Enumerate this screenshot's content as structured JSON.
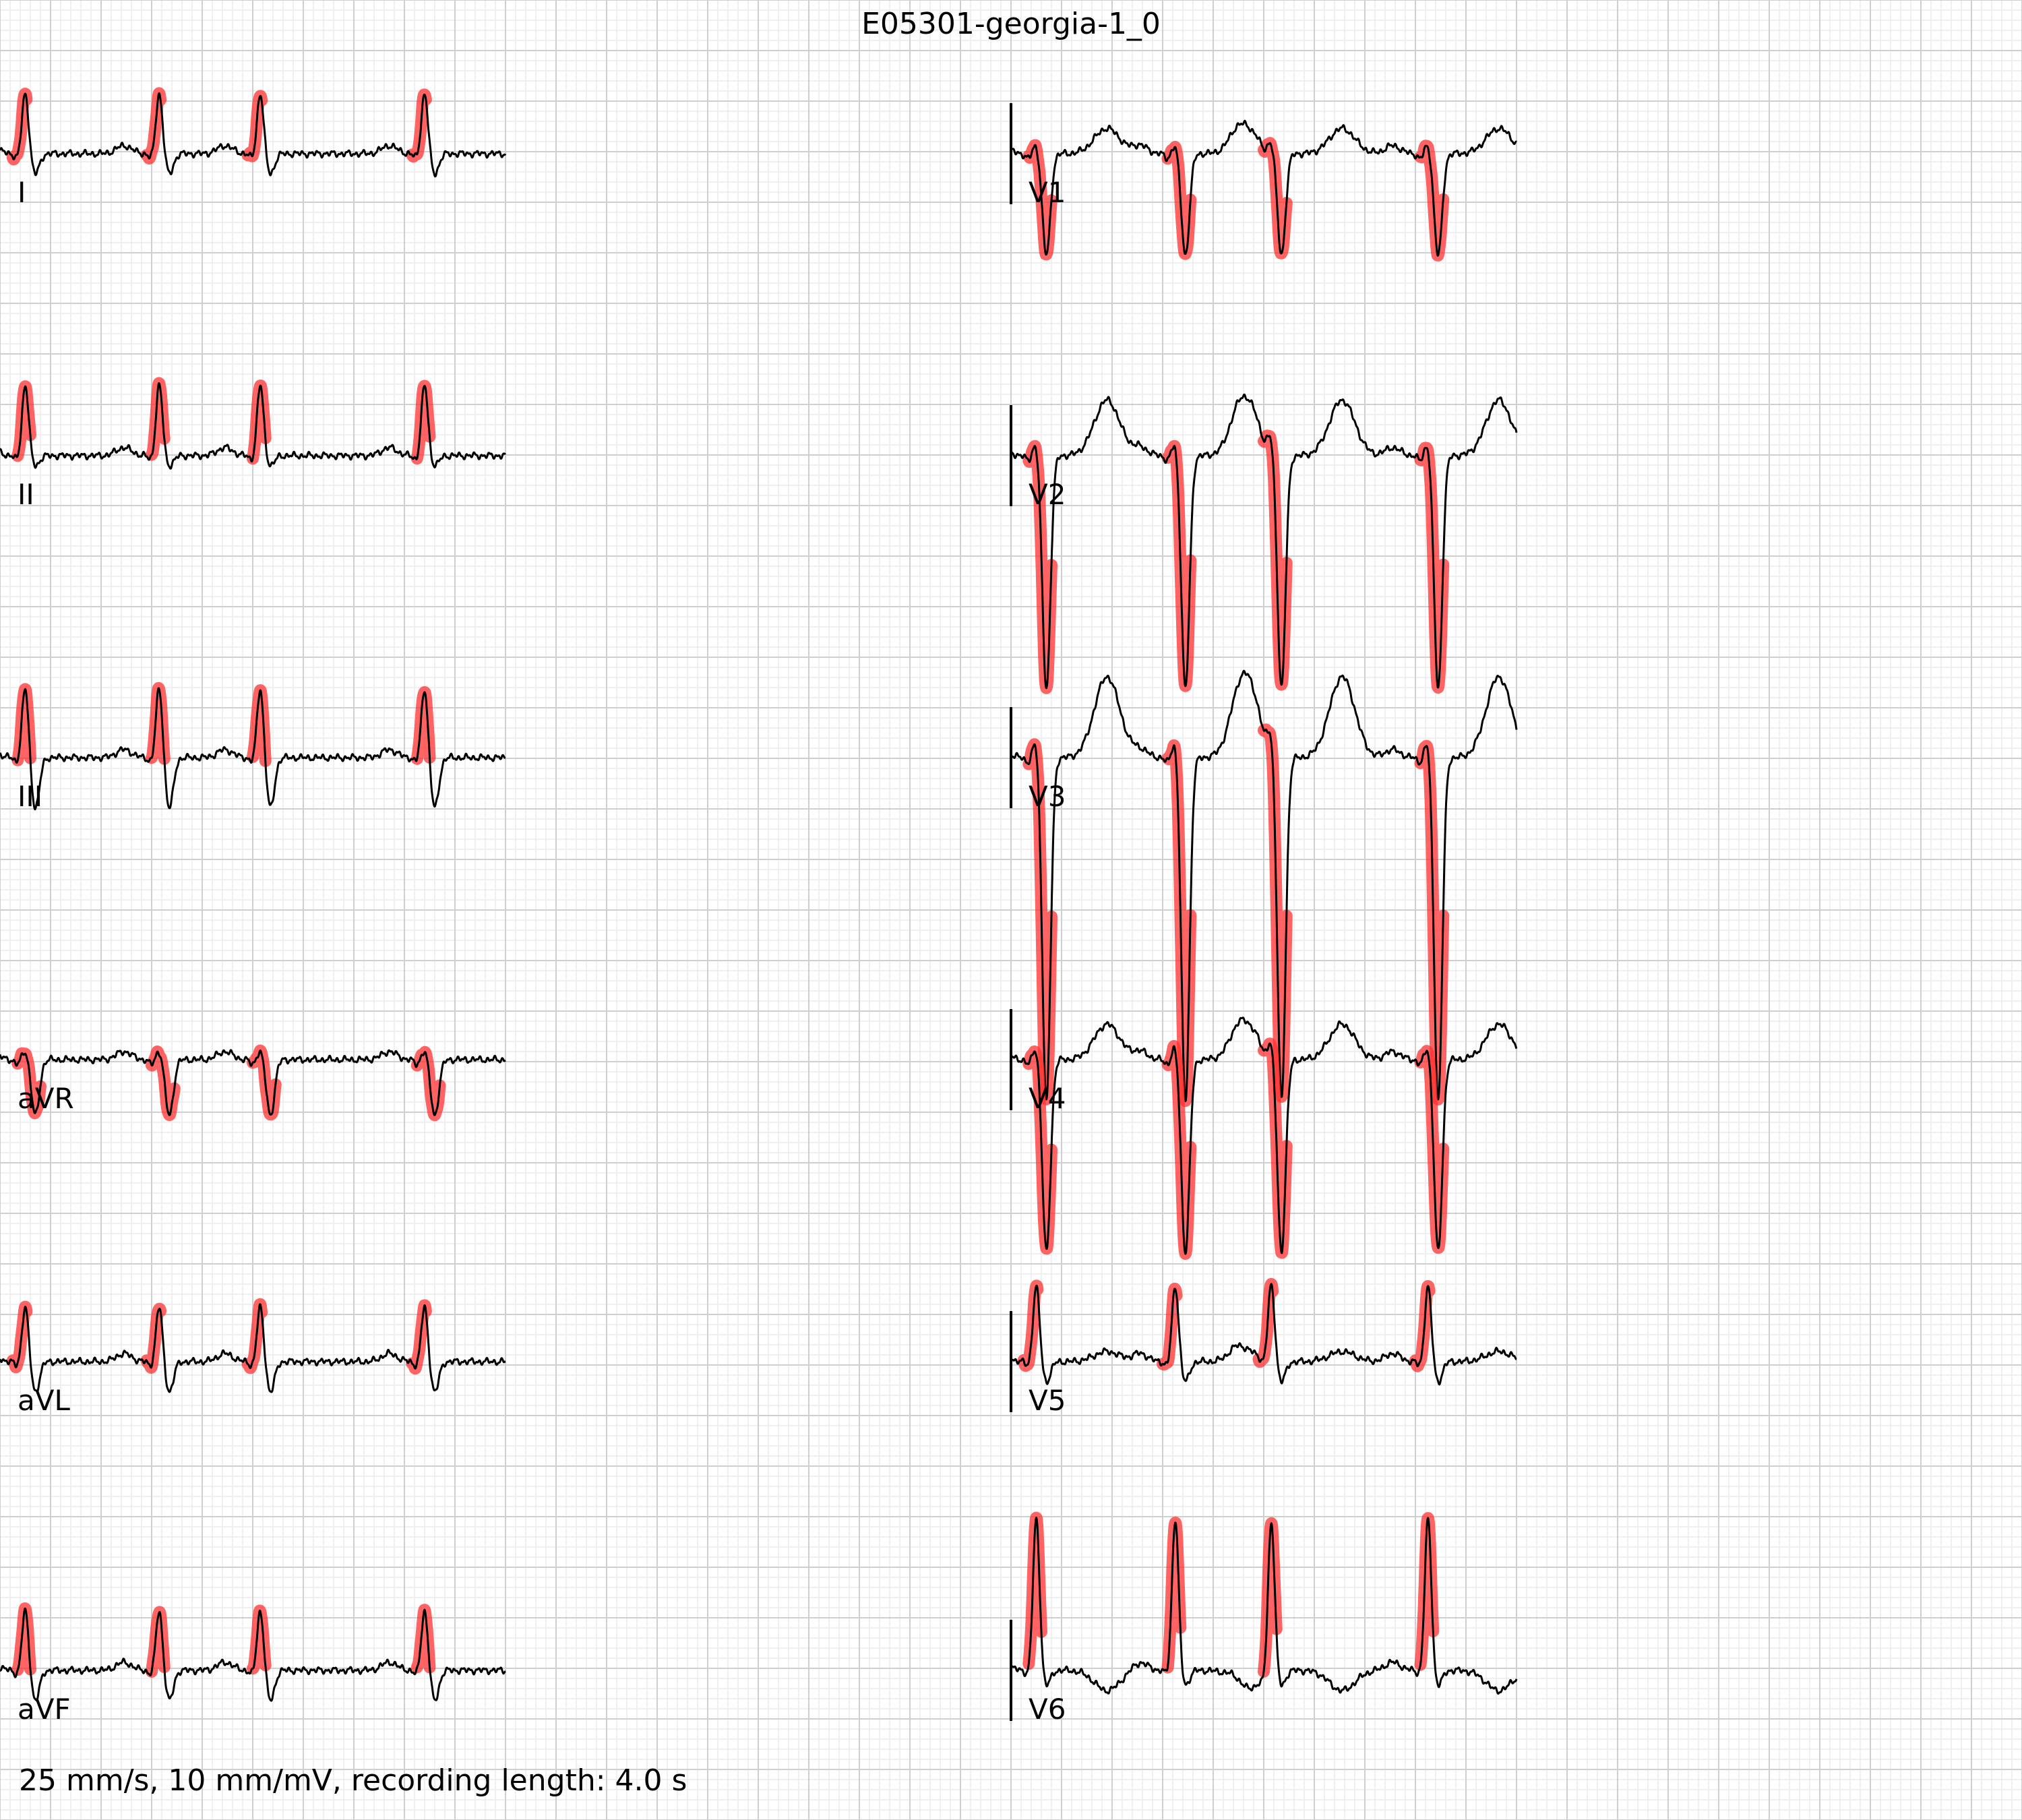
{
  "chart_data": {
    "type": "line",
    "title": "E05301-georgia-1_0",
    "footer": "25 mm/s, 10 mm/mV, recording length: 4.0 s",
    "paper_speed_mm_per_s": 25,
    "gain_mm_per_mV": 10,
    "recording_length_s": 4.0,
    "grid": true,
    "columns": [
      {
        "time_range_s": [
          0,
          2.0
        ],
        "leads": [
          {
            "name": "I",
            "beats_s": [
              0.1,
              0.63,
              1.03,
              1.68
            ],
            "r_mV": 0.6,
            "s_mV": -0.2,
            "t_mV": 0.0,
            "highlight": "r_top"
          },
          {
            "name": "II",
            "beats_s": [
              0.1,
              0.63,
              1.03,
              1.68
            ],
            "r_mV": 0.7,
            "s_mV": -0.1,
            "t_mV": 0.0,
            "highlight": "r_up"
          },
          {
            "name": "III",
            "beats_s": [
              0.1,
              0.63,
              1.03,
              1.68
            ],
            "r_mV": 0.7,
            "s_mV": -0.5,
            "t_mV": 0.0,
            "highlight": "r_up"
          },
          {
            "name": "aVR",
            "beats_s": [
              0.1,
              0.63,
              1.03,
              1.68
            ],
            "r_mV": 0.1,
            "s_mV": -0.55,
            "t_mV": 0.0,
            "highlight": "s_down"
          },
          {
            "name": "aVL",
            "beats_s": [
              0.1,
              0.63,
              1.03,
              1.68
            ],
            "r_mV": 0.55,
            "s_mV": -0.3,
            "t_mV": 0.0,
            "highlight": "r_top"
          },
          {
            "name": "aVF",
            "beats_s": [
              0.1,
              0.63,
              1.03,
              1.68
            ],
            "r_mV": 0.6,
            "s_mV": -0.3,
            "t_mV": 0.0,
            "highlight": "r_up"
          }
        ]
      },
      {
        "time_range_s": [
          2.0,
          4.0
        ],
        "leads": [
          {
            "name": "V1",
            "beats_s": [
              2.1,
              2.65,
              3.03,
              3.65
            ],
            "r_mV": 0.1,
            "s_mV": -1.0,
            "t_mV": 0.25,
            "highlight": "s_down"
          },
          {
            "name": "V2",
            "beats_s": [
              2.1,
              2.65,
              3.03,
              3.65
            ],
            "r_mV": 0.15,
            "s_mV": -2.3,
            "t_mV": 0.55,
            "highlight": "s_down"
          },
          {
            "name": "V3",
            "beats_s": [
              2.1,
              2.65,
              3.03,
              3.65
            ],
            "r_mV": 0.2,
            "s_mV": -3.4,
            "t_mV": 0.8,
            "highlight": "s_down"
          },
          {
            "name": "V4",
            "beats_s": [
              2.1,
              2.65,
              3.03,
              3.65
            ],
            "r_mV": 0.15,
            "s_mV": -1.9,
            "t_mV": 0.35,
            "highlight": "s_down"
          },
          {
            "name": "V5",
            "beats_s": [
              2.1,
              2.65,
              3.03,
              3.65
            ],
            "r_mV": 0.75,
            "s_mV": -0.2,
            "t_mV": 0.1,
            "highlight": "r_top"
          },
          {
            "name": "V6",
            "beats_s": [
              2.1,
              2.65,
              3.03,
              3.65
            ],
            "r_mV": 1.5,
            "s_mV": -0.15,
            "t_mV": -0.2,
            "highlight": "r_up"
          }
        ]
      }
    ]
  }
}
